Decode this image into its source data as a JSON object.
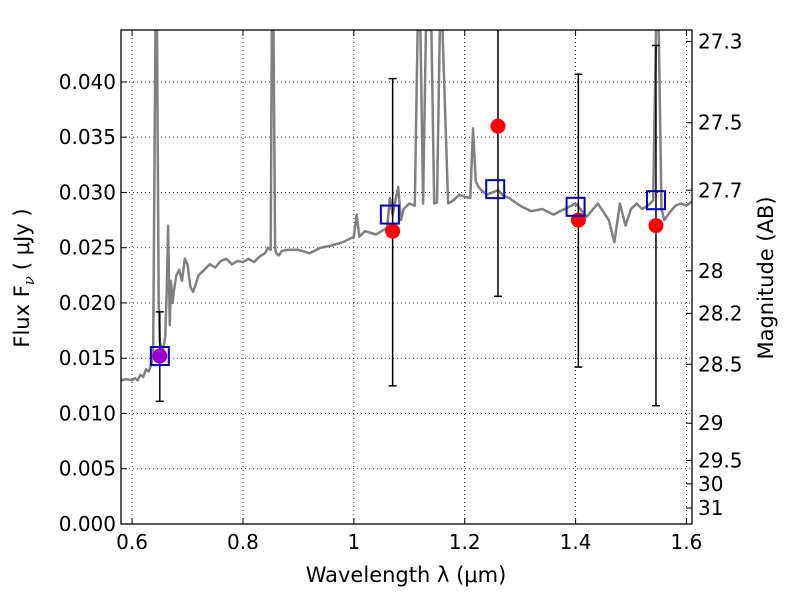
{
  "chart_data": {
    "type": "scatter",
    "title": "",
    "xlabel": "Wavelength  λ (μm)",
    "ylabel": "Flux  F",
    "ylabel_sub": "ν",
    "ylabel_unit": "( μJy )",
    "y2label": "Magnitude (AB)",
    "xlim": [
      0.58,
      1.61
    ],
    "ylim": [
      0.0,
      0.0447
    ],
    "grid": true,
    "legend": "none",
    "x_ticks": [
      0.6,
      0.8,
      1.0,
      1.2,
      1.4,
      1.6
    ],
    "x_tick_labels": [
      "0.6",
      "0.8",
      "1",
      "1.2",
      "1.4",
      "1.6"
    ],
    "y_ticks": [
      0.0,
      0.005,
      0.01,
      0.015,
      0.02,
      0.025,
      0.03,
      0.035,
      0.04
    ],
    "y_tick_labels": [
      "0.000",
      "0.005",
      "0.010",
      "0.015",
      "0.020",
      "0.025",
      "0.030",
      "0.035",
      "0.040"
    ],
    "mag_ticks": [
      27.3,
      27.5,
      27.7,
      28,
      28.2,
      28.5,
      29,
      29.5,
      30,
      31
    ],
    "mag_tick_labels": [
      "27.3",
      "27.5",
      "27.7",
      "28",
      "28.2",
      "28.5",
      "29",
      "29.5",
      "30",
      "31"
    ],
    "colors": {
      "model": "#808080",
      "observed": "#ff0000",
      "model_photometry": "#0000cc",
      "errorbar": "#000000",
      "overlap": "#9900cc"
    },
    "series": [
      {
        "type": "line",
        "x": [
          0.58,
          0.59,
          0.6,
          0.605,
          0.61,
          0.615,
          0.62,
          0.625,
          0.63,
          0.635,
          0.638,
          0.64,
          0.642,
          0.645,
          0.648,
          0.65,
          0.655,
          0.66,
          0.663,
          0.665,
          0.668,
          0.67,
          0.673,
          0.675,
          0.68,
          0.685,
          0.69,
          0.695,
          0.7,
          0.705,
          0.71,
          0.72,
          0.73,
          0.74,
          0.75,
          0.76,
          0.77,
          0.78,
          0.79,
          0.8,
          0.81,
          0.82,
          0.83,
          0.84,
          0.845,
          0.85,
          0.852,
          0.855,
          0.858,
          0.86,
          0.865,
          0.87,
          0.88,
          0.9,
          0.92,
          0.94,
          0.96,
          0.98,
          1.0,
          1.005,
          1.01,
          1.02,
          1.04,
          1.06,
          1.065,
          1.07,
          1.08,
          1.085,
          1.09,
          1.1,
          1.11,
          1.115,
          1.12,
          1.125,
          1.13,
          1.135,
          1.14,
          1.145,
          1.15,
          1.155,
          1.16,
          1.17,
          1.18,
          1.19,
          1.2,
          1.21,
          1.215,
          1.22,
          1.225,
          1.23,
          1.24,
          1.25,
          1.26,
          1.27,
          1.28,
          1.3,
          1.32,
          1.34,
          1.36,
          1.38,
          1.4,
          1.42,
          1.44,
          1.46,
          1.47,
          1.48,
          1.49,
          1.5,
          1.51,
          1.52,
          1.53,
          1.54,
          1.545,
          1.55,
          1.555,
          1.56,
          1.57,
          1.58,
          1.59,
          1.6,
          1.61
        ],
        "y": [
          0.013,
          0.0131,
          0.013,
          0.0132,
          0.013,
          0.0135,
          0.0133,
          0.014,
          0.0138,
          0.0145,
          0.016,
          0.03,
          0.0447,
          0.0447,
          0.02,
          0.0165,
          0.0155,
          0.017,
          0.022,
          0.027,
          0.018,
          0.022,
          0.02,
          0.021,
          0.0225,
          0.023,
          0.022,
          0.024,
          0.0235,
          0.0215,
          0.021,
          0.0225,
          0.023,
          0.0235,
          0.0232,
          0.0238,
          0.024,
          0.0235,
          0.0238,
          0.0237,
          0.024,
          0.0237,
          0.0242,
          0.0245,
          0.025,
          0.0248,
          0.0447,
          0.0447,
          0.025,
          0.0245,
          0.0243,
          0.0247,
          0.0248,
          0.0248,
          0.0245,
          0.025,
          0.0252,
          0.0255,
          0.026,
          0.028,
          0.026,
          0.0265,
          0.0262,
          0.0268,
          0.0295,
          0.028,
          0.0305,
          0.0275,
          0.0285,
          0.029,
          0.0288,
          0.0447,
          0.0447,
          0.029,
          0.0447,
          0.0447,
          0.0447,
          0.029,
          0.0291,
          0.0447,
          0.0447,
          0.029,
          0.0293,
          0.0298,
          0.0296,
          0.0295,
          0.0358,
          0.031,
          0.0305,
          0.0302,
          0.0298,
          0.03,
          0.0302,
          0.0297,
          0.0295,
          0.0288,
          0.0283,
          0.0285,
          0.028,
          0.0285,
          0.029,
          0.0278,
          0.029,
          0.0275,
          0.0255,
          0.029,
          0.027,
          0.0285,
          0.029,
          0.0285,
          0.0288,
          0.0293,
          0.0447,
          0.0447,
          0.0285,
          0.0275,
          0.0282,
          0.0288,
          0.029,
          0.0288,
          0.0292
        ]
      },
      {
        "type": "observed",
        "points": [
          {
            "x": 0.65,
            "y": 0.0152,
            "err_low": 0.0111,
            "err_high": 0.0192
          },
          {
            "x": 1.07,
            "y": 0.0265,
            "err_low": 0.0125,
            "err_high": 0.0403
          },
          {
            "x": 1.26,
            "y": 0.036,
            "err_low": 0.0206,
            "err_high": 0.0447
          },
          {
            "x": 1.405,
            "y": 0.0275,
            "err_low": 0.0142,
            "err_high": 0.0407
          },
          {
            "x": 1.545,
            "y": 0.027,
            "err_low": 0.0107,
            "err_high": 0.0433
          }
        ]
      },
      {
        "type": "model_photometry",
        "points": [
          {
            "x": 0.65,
            "y": 0.0152
          },
          {
            "x": 1.065,
            "y": 0.028
          },
          {
            "x": 1.255,
            "y": 0.0303
          },
          {
            "x": 1.4,
            "y": 0.0287
          },
          {
            "x": 1.545,
            "y": 0.0293
          }
        ]
      }
    ]
  }
}
